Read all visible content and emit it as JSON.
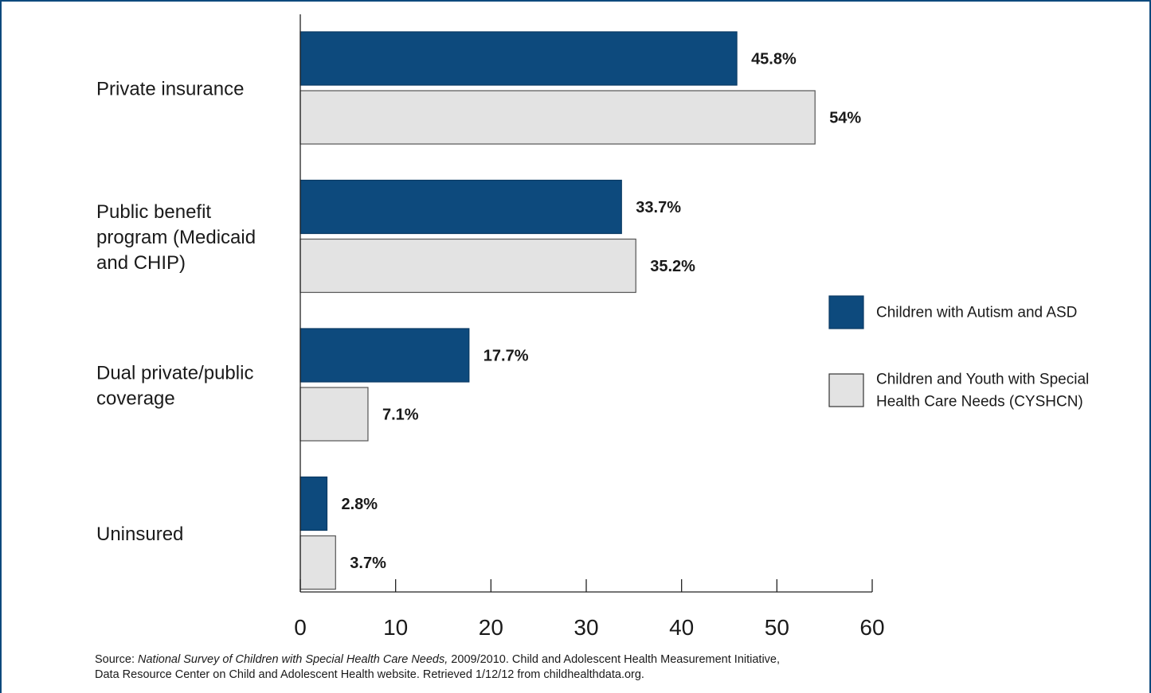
{
  "chart_data": {
    "type": "bar",
    "orientation": "horizontal",
    "categories": [
      [
        "Private insurance"
      ],
      [
        "Public benefit",
        "program (Medicaid",
        "and CHIP)"
      ],
      [
        "Dual private/public",
        "coverage"
      ],
      [
        "Uninsured"
      ]
    ],
    "series": [
      {
        "name": [
          "Children with Autism and ASD"
        ],
        "color": "#0d4a7d",
        "values": [
          45.8,
          33.7,
          17.7,
          2.8
        ],
        "labels": [
          "45.8%",
          "33.7%",
          "17.7%",
          "2.8%"
        ]
      },
      {
        "name": [
          "Children and Youth with Special",
          "Health Care Needs (CYSHCN)"
        ],
        "color": "#e3e3e3",
        "values": [
          54,
          35.2,
          7.1,
          3.7
        ],
        "labels": [
          "54%",
          "35.2%",
          "7.1%",
          "3.7%"
        ]
      }
    ],
    "xlim": [
      0,
      60
    ],
    "xticks": [
      0,
      10,
      20,
      30,
      40,
      50,
      60
    ],
    "legend": "right",
    "grid": false
  },
  "source": {
    "prefix": "Source: ",
    "survey": "National Survey of Children with Special Health Care Needs,",
    "rest1": " 2009/2010. Child and Adolescent Health Measurement Initiative,",
    "line2": "Data Resource Center on Child and Adolescent Health website. Retrieved 1/12/12 from childhealthdata.org."
  }
}
